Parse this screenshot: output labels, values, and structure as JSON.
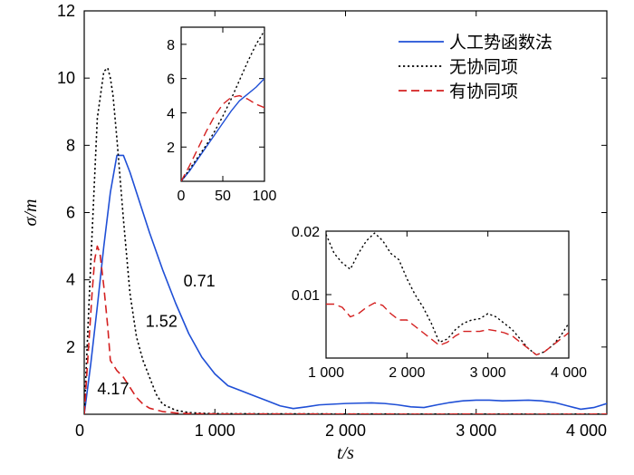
{
  "chart_data": [
    {
      "type": "line",
      "role": "main",
      "xlabel": "t/s",
      "ylabel": "σ/m",
      "xlim": [
        0,
        4000
      ],
      "ylim": [
        0,
        12
      ],
      "xticks": [
        0,
        1000,
        2000,
        3000,
        4000
      ],
      "xtick_labels": [
        "0",
        "1 000",
        "2 000",
        "3 000",
        "4 000"
      ],
      "yticks": [
        2,
        4,
        6,
        8,
        10,
        12
      ],
      "ytick_labels": [
        "2",
        "4",
        "6",
        "8",
        "10",
        "12"
      ],
      "grid": false,
      "legend_position": "top-right",
      "annotations": [
        {
          "text": "0.71",
          "x": 760,
          "y": 3.8
        },
        {
          "text": "1.52",
          "x": 470,
          "y": 2.6
        },
        {
          "text": "4.17",
          "x": 100,
          "y": 0.6
        }
      ],
      "series": [
        {
          "name": "人工势函数法",
          "color": "#1f4fd6",
          "style": "solid",
          "x": [
            0,
            50,
            100,
            150,
            200,
            250,
            300,
            350,
            400,
            500,
            600,
            700,
            800,
            900,
            1000,
            1100,
            1200,
            1300,
            1400,
            1500,
            1600,
            1700,
            1800,
            1900,
            2000,
            2100,
            2200,
            2300,
            2400,
            2500,
            2600,
            2700,
            2800,
            2900,
            3000,
            3100,
            3200,
            3300,
            3400,
            3500,
            3600,
            3700,
            3800,
            3900,
            4000
          ],
          "y": [
            0,
            1.5,
            3.2,
            5.0,
            6.6,
            7.7,
            7.7,
            7.2,
            6.6,
            5.4,
            4.3,
            3.3,
            2.4,
            1.7,
            1.2,
            0.85,
            0.7,
            0.55,
            0.4,
            0.25,
            0.17,
            0.22,
            0.28,
            0.3,
            0.32,
            0.33,
            0.34,
            0.32,
            0.28,
            0.22,
            0.2,
            0.28,
            0.35,
            0.4,
            0.42,
            0.42,
            0.4,
            0.41,
            0.42,
            0.4,
            0.35,
            0.25,
            0.15,
            0.2,
            0.32
          ]
        },
        {
          "name": "无协同项",
          "color": "#000000",
          "style": "dotted",
          "x": [
            0,
            50,
            100,
            150,
            180,
            200,
            220,
            250,
            300,
            350,
            400,
            450,
            500,
            550,
            600,
            700,
            800,
            900,
            1000,
            1100,
            1200,
            1500,
            2000,
            2500,
            3000,
            3500,
            4000
          ],
          "y": [
            0,
            4.5,
            8.8,
            10.2,
            10.3,
            10.0,
            9.5,
            8.2,
            5.8,
            3.6,
            2.3,
            1.6,
            1.1,
            0.6,
            0.3,
            0.12,
            0.05,
            0.03,
            0.02,
            0.018,
            0.015,
            0.012,
            0.01,
            0.006,
            0.007,
            0.003,
            0.005
          ]
        },
        {
          "name": "有协同项",
          "color": "#d42020",
          "style": "dashed",
          "x": [
            0,
            30,
            60,
            80,
            100,
            120,
            150,
            180,
            200,
            250,
            300,
            350,
            400,
            450,
            500,
            600,
            700,
            800,
            1000,
            1500,
            2000,
            2500,
            3000,
            3500,
            4000
          ],
          "y": [
            0,
            1.8,
            3.6,
            4.6,
            5.0,
            4.8,
            3.8,
            2.6,
            1.6,
            1.3,
            1.1,
            0.8,
            0.5,
            0.3,
            0.18,
            0.08,
            0.04,
            0.02,
            0.009,
            0.008,
            0.006,
            0.003,
            0.004,
            0.002,
            0.004
          ]
        }
      ]
    },
    {
      "type": "line",
      "role": "inset-top",
      "xlim": [
        0,
        100
      ],
      "ylim": [
        0,
        9
      ],
      "xticks": [
        0,
        50,
        100
      ],
      "xtick_labels": [
        "0",
        "50",
        "100"
      ],
      "yticks": [
        2,
        4,
        6,
        8
      ],
      "ytick_labels": [
        "2",
        "4",
        "6",
        "8"
      ],
      "series": [
        {
          "color": "#1f4fd6",
          "style": "solid",
          "x": [
            0,
            10,
            20,
            30,
            40,
            50,
            60,
            70,
            80,
            90,
            100
          ],
          "y": [
            0,
            0.6,
            1.3,
            2.0,
            2.7,
            3.4,
            4.1,
            4.7,
            5.1,
            5.5,
            6.0
          ]
        },
        {
          "color": "#000000",
          "style": "dotted",
          "x": [
            0,
            10,
            20,
            30,
            40,
            50,
            60,
            70,
            80,
            90,
            100
          ],
          "y": [
            0,
            0.7,
            1.4,
            2.1,
            2.9,
            3.8,
            4.8,
            5.9,
            7.0,
            8.0,
            8.8
          ]
        },
        {
          "color": "#d42020",
          "style": "dashed",
          "x": [
            0,
            10,
            20,
            30,
            40,
            50,
            60,
            70,
            80,
            90,
            100
          ],
          "y": [
            0,
            0.9,
            1.9,
            2.9,
            3.8,
            4.5,
            4.9,
            5.0,
            4.8,
            4.5,
            4.3
          ]
        }
      ]
    },
    {
      "type": "line",
      "role": "inset-bottom",
      "xlim": [
        1000,
        4000
      ],
      "ylim": [
        0,
        0.02
      ],
      "xticks": [
        1000,
        2000,
        3000,
        4000
      ],
      "xtick_labels": [
        "1 000",
        "2 000",
        "3 000",
        "4 000"
      ],
      "yticks": [
        0.01,
        0.02
      ],
      "ytick_labels": [
        "0.01",
        "0.02"
      ],
      "series": [
        {
          "color": "#000000",
          "style": "dotted",
          "x": [
            1000,
            1100,
            1200,
            1300,
            1400,
            1500,
            1600,
            1700,
            1800,
            1900,
            2000,
            2100,
            2200,
            2300,
            2400,
            2500,
            2600,
            2700,
            2800,
            2900,
            3000,
            3100,
            3200,
            3300,
            3400,
            3500,
            3600,
            3700,
            3800,
            3900,
            4000
          ],
          "y": [
            0.0195,
            0.0165,
            0.015,
            0.014,
            0.0165,
            0.0185,
            0.0197,
            0.0185,
            0.0165,
            0.0155,
            0.0125,
            0.01,
            0.008,
            0.0055,
            0.0025,
            0.003,
            0.0045,
            0.0055,
            0.006,
            0.0062,
            0.007,
            0.0065,
            0.0055,
            0.0045,
            0.003,
            0.0015,
            0.0005,
            0.001,
            0.002,
            0.0035,
            0.0055
          ]
        },
        {
          "color": "#d42020",
          "style": "dashed",
          "x": [
            1000,
            1100,
            1200,
            1300,
            1400,
            1500,
            1600,
            1700,
            1800,
            1900,
            2000,
            2100,
            2200,
            2300,
            2400,
            2500,
            2600,
            2700,
            2800,
            2900,
            3000,
            3100,
            3200,
            3300,
            3400,
            3500,
            3600,
            3700,
            3800,
            3900,
            4000
          ],
          "y": [
            0.0085,
            0.0085,
            0.008,
            0.0065,
            0.007,
            0.008,
            0.0087,
            0.0083,
            0.007,
            0.006,
            0.006,
            0.005,
            0.004,
            0.003,
            0.002,
            0.0025,
            0.0035,
            0.0042,
            0.0042,
            0.0042,
            0.0045,
            0.0043,
            0.004,
            0.0035,
            0.0025,
            0.0015,
            0.0005,
            0.001,
            0.002,
            0.003,
            0.004
          ]
        }
      ]
    }
  ]
}
